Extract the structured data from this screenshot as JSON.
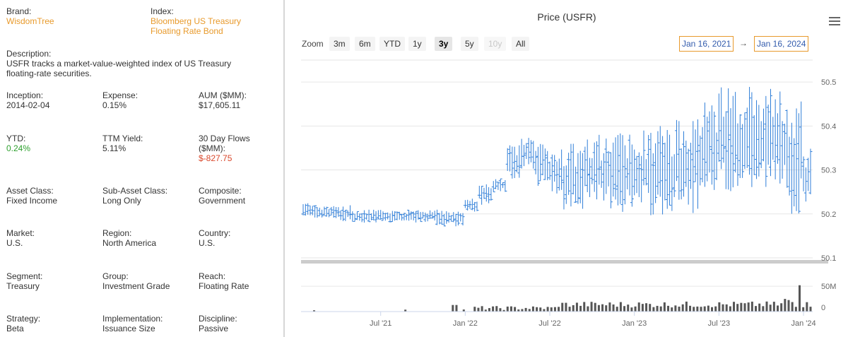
{
  "fund": {
    "brand": {
      "label": "Brand:",
      "value": "WisdomTree"
    },
    "index": {
      "label": "Index:",
      "value_line1": "Bloomberg US Treasury",
      "value_line2": "Floating Rate Bond"
    },
    "description": {
      "label": "Description:",
      "line1": "USFR tracks a market-value-weighted index of US Treasury",
      "line2": "floating-rate securities."
    },
    "inception": {
      "label": "Inception:",
      "value": "2014-02-04"
    },
    "expense": {
      "label": "Expense:",
      "value": "0.15%"
    },
    "aum": {
      "label": "AUM ($MM):",
      "value": "$17,605.11"
    },
    "ytd": {
      "label": "YTD:",
      "value": "0.24%"
    },
    "ttm_yield": {
      "label": "TTM Yield:",
      "value": "5.11%"
    },
    "flows": {
      "label_line1": "30 Day Flows",
      "label_line2": "($MM):",
      "value": "$-827.75"
    },
    "asset_class": {
      "label": "Asset Class:",
      "value": "Fixed Income"
    },
    "sub_asset_class": {
      "label": "Sub-Asset Class:",
      "value": "Long Only"
    },
    "composite": {
      "label": "Composite:",
      "value": "Government"
    },
    "market": {
      "label": "Market:",
      "value": "U.S."
    },
    "region": {
      "label": "Region:",
      "value": "North America"
    },
    "country": {
      "label": "Country:",
      "value": "U.S."
    },
    "segment": {
      "label": "Segment:",
      "value": "Treasury"
    },
    "group": {
      "label": "Group:",
      "value": "Investment Grade"
    },
    "reach": {
      "label": "Reach:",
      "value": "Floating Rate"
    },
    "strategy": {
      "label": "Strategy:",
      "value": "Beta"
    },
    "implementation": {
      "label": "Implementation:",
      "value": "Issuance Size"
    },
    "discipline": {
      "label": "Discipline:",
      "value": "Passive"
    }
  },
  "colors": {
    "orange": "#e89a2c",
    "green": "#2ea02e",
    "red": "#d9472b",
    "series": "#2f7ed8",
    "volume": "#555555"
  },
  "chart_controls": {
    "zoom_label": "Zoom",
    "zoom_buttons": [
      "3m",
      "6m",
      "YTD",
      "1y",
      "3y",
      "5y",
      "10y",
      "All"
    ],
    "active_zoom": "3y",
    "disabled_zoom": "10y",
    "from_date": "Jan 16, 2021",
    "arrow": "→",
    "to_date": "Jan 16, 2024",
    "menu_icon": "hamburger-menu-icon"
  },
  "chart_data": {
    "type": "ohlc",
    "title": "Price (USFR)",
    "x_ticks": [
      "Jul '21",
      "Jan '22",
      "Jul '22",
      "Jan '23",
      "Jul '23",
      "Jan '24"
    ],
    "x_tick_positions_month": [
      5.5,
      11.5,
      17.5,
      23.5,
      29.5,
      35.5
    ],
    "y_ticks": [
      "50.1",
      "50.2",
      "50.3",
      "50.4",
      "50.5"
    ],
    "y_tick_values": [
      50.1,
      50.2,
      50.3,
      50.4,
      50.5
    ],
    "ylim": [
      50.1,
      50.55
    ],
    "volume_ticks": [
      "50M",
      "0"
    ],
    "volume_tick_values": [
      50,
      0
    ],
    "volume_ylim": [
      0,
      60
    ],
    "price_ranges_by_month": [
      {
        "month": "2021-01",
        "low": 50.19,
        "high": 50.23
      },
      {
        "month": "2021-02",
        "low": 50.19,
        "high": 50.22
      },
      {
        "month": "2021-03",
        "low": 50.19,
        "high": 50.22
      },
      {
        "month": "2021-04",
        "low": 50.18,
        "high": 50.22
      },
      {
        "month": "2021-05",
        "low": 50.18,
        "high": 50.21
      },
      {
        "month": "2021-06",
        "low": 50.18,
        "high": 50.21
      },
      {
        "month": "2021-07",
        "low": 50.18,
        "high": 50.21
      },
      {
        "month": "2021-08",
        "low": 50.18,
        "high": 50.21
      },
      {
        "month": "2021-09",
        "low": 50.18,
        "high": 50.21
      },
      {
        "month": "2021-10",
        "low": 50.18,
        "high": 50.21
      },
      {
        "month": "2021-11",
        "low": 50.17,
        "high": 50.21
      },
      {
        "month": "2021-12",
        "low": 50.17,
        "high": 50.21
      },
      {
        "month": "2022-01",
        "low": 50.2,
        "high": 50.24
      },
      {
        "month": "2022-02",
        "low": 50.22,
        "high": 50.27
      },
      {
        "month": "2022-03",
        "low": 50.25,
        "high": 50.28
      },
      {
        "month": "2022-04",
        "low": 50.28,
        "high": 50.36
      },
      {
        "month": "2022-05",
        "low": 50.3,
        "high": 50.38
      },
      {
        "month": "2022-06",
        "low": 50.26,
        "high": 50.37
      },
      {
        "month": "2022-07",
        "low": 50.24,
        "high": 50.35
      },
      {
        "month": "2022-08",
        "low": 50.21,
        "high": 50.36
      },
      {
        "month": "2022-09",
        "low": 50.21,
        "high": 50.37
      },
      {
        "month": "2022-10",
        "low": 50.21,
        "high": 50.38
      },
      {
        "month": "2022-11",
        "low": 50.21,
        "high": 50.39
      },
      {
        "month": "2022-12",
        "low": 50.2,
        "high": 50.39
      },
      {
        "month": "2023-01",
        "low": 50.2,
        "high": 50.39
      },
      {
        "month": "2023-02",
        "low": 50.19,
        "high": 50.4
      },
      {
        "month": "2023-03",
        "low": 50.19,
        "high": 50.4
      },
      {
        "month": "2023-04",
        "low": 50.2,
        "high": 50.42
      },
      {
        "month": "2023-05",
        "low": 50.2,
        "high": 50.44
      },
      {
        "month": "2023-06",
        "low": 50.21,
        "high": 50.47
      },
      {
        "month": "2023-07",
        "low": 50.23,
        "high": 50.49
      },
      {
        "month": "2023-08",
        "low": 50.24,
        "high": 50.49
      },
      {
        "month": "2023-09",
        "low": 50.24,
        "high": 50.51
      },
      {
        "month": "2023-10",
        "low": 50.25,
        "high": 50.49
      },
      {
        "month": "2023-11",
        "low": 50.24,
        "high": 50.48
      },
      {
        "month": "2023-12",
        "low": 50.2,
        "high": 50.46
      },
      {
        "month": "2024-01",
        "low": 50.2,
        "high": 50.35
      }
    ]
  }
}
